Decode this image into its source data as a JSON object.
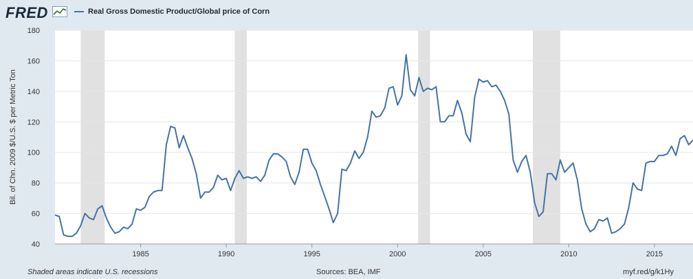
{
  "header": {
    "logo_text": "FRED",
    "legend_label": "Real Gross Domestic Product/Global price of Corn"
  },
  "footer": {
    "note": "Shaded areas indicate U.S. recessions",
    "sources": "Sources: BEA, IMF",
    "link": "myf.red/g/k1Hy"
  },
  "colors": {
    "background": "#e1e9f0",
    "plot_background": "#ffffff",
    "series": "#4572a7",
    "recession": "#e1e1e1"
  },
  "chart_data": {
    "type": "line",
    "title": "",
    "ylabel": "Bil. of Chn. 2009 $/U.S. $ per Metric Ton",
    "xlabel": "",
    "ylim": [
      40,
      180
    ],
    "xlim": [
      1980.0,
      2017.25
    ],
    "yticks": [
      40,
      60,
      80,
      100,
      120,
      140,
      160,
      180
    ],
    "xticks": [
      1985,
      1990,
      1995,
      2000,
      2005,
      2010,
      2015
    ],
    "grid": true,
    "legend": "top-left",
    "recessions": [
      [
        1981.5,
        1982.9
      ],
      [
        1990.5,
        1991.2
      ],
      [
        2001.2,
        2001.9
      ],
      [
        2007.9,
        2009.5
      ]
    ],
    "series": [
      {
        "name": "Real Gross Domestic Product/Global price of Corn",
        "x": [
          1980.0,
          1980.25,
          1980.5,
          1980.75,
          1981.0,
          1981.25,
          1981.5,
          1981.75,
          1982.0,
          1982.25,
          1982.5,
          1982.75,
          1983.0,
          1983.25,
          1983.5,
          1983.75,
          1984.0,
          1984.25,
          1984.5,
          1984.75,
          1985.0,
          1985.25,
          1985.5,
          1985.75,
          1986.0,
          1986.25,
          1986.5,
          1986.75,
          1987.0,
          1987.25,
          1987.5,
          1987.75,
          1988.0,
          1988.25,
          1988.5,
          1988.75,
          1989.0,
          1989.25,
          1989.5,
          1989.75,
          1990.0,
          1990.25,
          1990.5,
          1990.75,
          1991.0,
          1991.25,
          1991.5,
          1991.75,
          1992.0,
          1992.25,
          1992.5,
          1992.75,
          1993.0,
          1993.25,
          1993.5,
          1993.75,
          1994.0,
          1994.25,
          1994.5,
          1994.75,
          1995.0,
          1995.25,
          1995.5,
          1995.75,
          1996.0,
          1996.25,
          1996.5,
          1996.75,
          1997.0,
          1997.25,
          1997.5,
          1997.75,
          1998.0,
          1998.25,
          1998.5,
          1998.75,
          1999.0,
          1999.25,
          1999.5,
          1999.75,
          2000.0,
          2000.25,
          2000.5,
          2000.75,
          2001.0,
          2001.25,
          2001.5,
          2001.75,
          2002.0,
          2002.25,
          2002.5,
          2002.75,
          2003.0,
          2003.25,
          2003.5,
          2003.75,
          2004.0,
          2004.25,
          2004.5,
          2004.75,
          2005.0,
          2005.25,
          2005.5,
          2005.75,
          2006.0,
          2006.25,
          2006.5,
          2006.75,
          2007.0,
          2007.25,
          2007.5,
          2007.75,
          2008.0,
          2008.25,
          2008.5,
          2008.75,
          2009.0,
          2009.25,
          2009.5,
          2009.75,
          2010.0,
          2010.25,
          2010.5,
          2010.75,
          2011.0,
          2011.25,
          2011.5,
          2011.75,
          2012.0,
          2012.25,
          2012.5,
          2012.75,
          2013.0,
          2013.25,
          2013.5,
          2013.75,
          2014.0,
          2014.25,
          2014.5,
          2014.75,
          2015.0,
          2015.25,
          2015.5,
          2015.75,
          2016.0,
          2016.25,
          2016.5,
          2016.75,
          2017.0,
          2017.25
        ],
        "values": [
          59,
          58,
          46,
          45,
          45,
          47,
          52,
          60,
          57,
          56,
          63,
          65,
          57,
          51,
          47,
          48,
          51,
          50,
          53,
          63,
          62,
          64,
          71,
          74,
          75,
          75,
          105,
          117,
          116,
          103,
          111,
          103,
          96,
          86,
          70,
          74,
          74,
          77,
          85,
          82,
          83,
          75,
          83,
          88,
          83,
          84,
          83,
          84,
          81,
          85,
          95,
          99,
          99,
          97,
          94,
          84,
          79,
          87,
          102,
          102,
          93,
          88,
          79,
          71,
          63,
          54,
          60,
          89,
          88,
          93,
          101,
          96,
          100,
          110,
          127,
          123,
          124,
          129,
          142,
          143,
          131,
          137,
          164,
          141,
          137,
          149,
          140,
          142,
          141,
          143,
          120,
          120,
          124,
          124,
          134,
          126,
          112,
          107,
          136,
          148,
          146,
          147,
          143,
          144,
          140,
          134,
          125,
          95,
          87,
          94,
          98,
          87,
          67,
          58,
          61,
          86,
          86,
          82,
          95,
          87,
          90,
          93,
          82,
          63,
          53,
          48,
          50,
          56,
          55,
          57,
          47,
          48,
          50,
          53,
          64,
          80,
          76,
          75,
          93,
          94,
          94,
          98,
          98,
          99,
          104,
          98,
          109,
          111,
          105,
          108
        ]
      }
    ]
  }
}
